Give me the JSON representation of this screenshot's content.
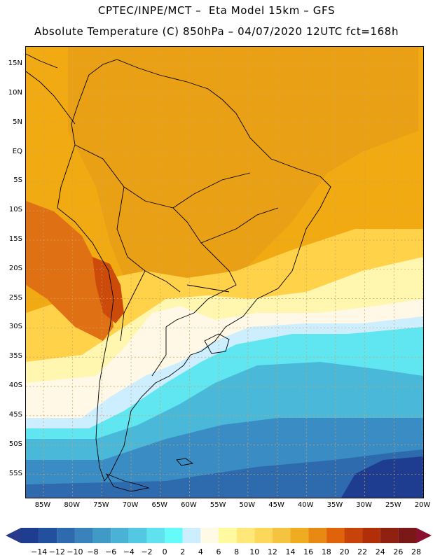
{
  "title_line1": "CPTEC/INPE/MCT –  Eta Model 15km – GFS",
  "title_line2": "Absolute Temperature (C) 850hPa – 04/07/2020 12UTC fct=168h",
  "lat_labels": [
    "15N",
    "10N",
    "5N",
    "EQ",
    "5S",
    "10S",
    "15S",
    "20S",
    "25S",
    "30S",
    "35S",
    "40S",
    "45S",
    "50S",
    "55S"
  ],
  "lat_values": [
    15,
    10,
    5,
    0,
    -5,
    -10,
    -15,
    -20,
    -25,
    -30,
    -35,
    -40,
    -45,
    -50,
    -55
  ],
  "lon_labels": [
    "85W",
    "80W",
    "75W",
    "70W",
    "65W",
    "60W",
    "55W",
    "50W",
    "45W",
    "40W",
    "35W",
    "30W",
    "25W",
    "20W"
  ],
  "lon_values": [
    -85,
    -80,
    -75,
    -70,
    -65,
    -60,
    -55,
    -50,
    -45,
    -40,
    -35,
    -30,
    -25,
    -20
  ],
  "colorbar": {
    "labels": [
      "−14",
      "−12",
      "−10",
      "−8",
      "−6",
      "−4",
      "−2",
      "0",
      "2",
      "4",
      "6",
      "8",
      "10",
      "12",
      "14",
      "16",
      "18",
      "20",
      "22",
      "24",
      "26",
      "28"
    ],
    "colors": [
      "#1e3c90",
      "#23509e",
      "#2e6aae",
      "#3a82bc",
      "#3f9bc6",
      "#4ab2d4",
      "#52c8e2",
      "#5fe1ee",
      "#66fbfb",
      "#cceeff",
      "#fffae6",
      "#fffaa0",
      "#ffe878",
      "#fcd85a",
      "#f4c440",
      "#f0ac20",
      "#e88a12",
      "#e0620a",
      "#c8430a",
      "#b02e08",
      "#902010",
      "#7a1818"
    ],
    "end_low": "#2a3a8a",
    "end_high": "#8a1030"
  },
  "palette": {
    "warm_orange": "#f2aa12",
    "orange_mid": "#eaa015",
    "deep_orange": "#e07014",
    "red_orange": "#cc4a0a",
    "yellow": "#ffd24a",
    "light_yellow": "#fff6b0",
    "cream": "#fff8e6",
    "pale_cyan": "#cceeff",
    "cyan": "#5fe6f0",
    "light_blue": "#4ab8d8",
    "mid_blue": "#3a8cc4",
    "blue": "#2e6aae",
    "dark_blue": "#1e3c90",
    "coast": "#000000",
    "grid": "#d0a060"
  }
}
